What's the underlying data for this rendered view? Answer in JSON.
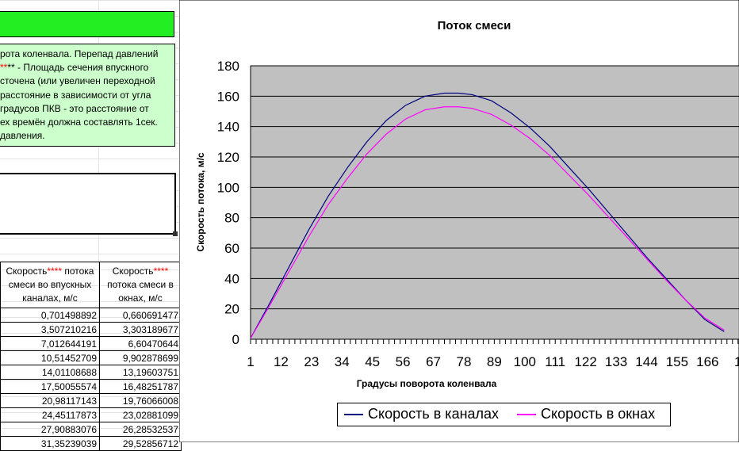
{
  "note_lines": [
    "рота коленвала. Перепад давлений",
    "** - Площадь сечения впускного",
    "сточена (или увеличен переходной",
    "расстояние в зависимости от угла",
    "градусов ПКВ - это расстояние от",
    "ех времён должна составлять 1сек.",
    "давления."
  ],
  "table": {
    "header1_pre": "Скорость",
    "header1_stars": "****",
    "header1_post": " потока смеси во впускных каналах, м/с",
    "header2_pre": "Скорость",
    "header2_stars": "****",
    "header2_post": " потока смеси в окнах, м/с",
    "rows": [
      [
        "0,701498892",
        "0,660691477"
      ],
      [
        "3,507210216",
        "3,303189677"
      ],
      [
        "7,012644191",
        "6,60470644"
      ],
      [
        "10,51452709",
        "9,902878699"
      ],
      [
        "14,01108688",
        "13,19603751"
      ],
      [
        "17,50055574",
        "16,48251787"
      ],
      [
        "20,98117143",
        "19,76066008"
      ],
      [
        "24,45117873",
        "23,02881099"
      ],
      [
        "27,90883076",
        "26,28532537"
      ],
      [
        "31,35239039",
        "29,52856712"
      ]
    ]
  },
  "colors": {
    "plot_bg": "#c0c0c0",
    "series_channels": "#000080",
    "series_windows": "#ff00ff",
    "header_green": "#22ee22",
    "note_green": "#ccffcc"
  },
  "chart_data": {
    "type": "line",
    "title": "Поток смеси",
    "xlabel": "Градусы поворота коленвала",
    "ylabel": "Скорость потока, м/с",
    "ylim": [
      0,
      180
    ],
    "yticks": [
      "0",
      "20",
      "40",
      "60",
      "80",
      "100",
      "120",
      "140",
      "160",
      "180"
    ],
    "xticks": [
      "1",
      "12",
      "23",
      "34",
      "45",
      "56",
      "67",
      "78",
      "89",
      "100",
      "111",
      "122",
      "133",
      "144",
      "155",
      "166",
      "1"
    ],
    "grid": true,
    "legend_position": "bottom",
    "x": [
      1,
      8,
      15,
      22,
      29,
      36,
      43,
      50,
      57,
      64,
      71,
      76,
      81,
      88,
      95,
      102,
      109,
      116,
      123,
      130,
      137,
      144,
      151,
      158,
      165,
      172
    ],
    "series": [
      {
        "name": "Скорость в каналах",
        "values": [
          0.7,
          24,
          48,
          72,
          94,
          113,
          130,
          144,
          154,
          160,
          162,
          162,
          161,
          157,
          149,
          139,
          127,
          113,
          99,
          84,
          69,
          54,
          40,
          26,
          13,
          5
        ]
      },
      {
        "name": "Скорость в окнах",
        "values": [
          0.66,
          22.5,
          45,
          67.5,
          88.5,
          106,
          122,
          135,
          145,
          151,
          153,
          153,
          152,
          148,
          141,
          132,
          121,
          108,
          95,
          81,
          67,
          53,
          39,
          26,
          14,
          6
        ]
      }
    ]
  }
}
